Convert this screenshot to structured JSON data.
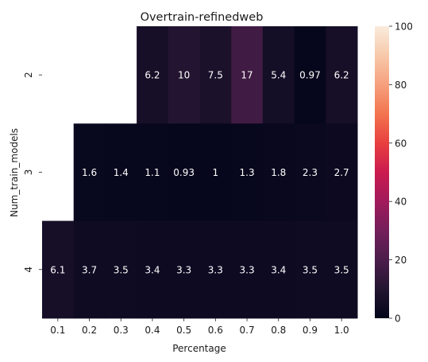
{
  "chart_data": {
    "type": "heatmap",
    "title": "Overtrain-refinedweb",
    "xlabel": "Percentage",
    "ylabel": "Num_train_models",
    "x_categories": [
      "0.1",
      "0.2",
      "0.3",
      "0.4",
      "0.5",
      "0.6",
      "0.7",
      "0.8",
      "0.9",
      "1.0"
    ],
    "y_categories": [
      "2",
      "3",
      "4"
    ],
    "values": [
      [
        null,
        null,
        null,
        6.2,
        10,
        7.5,
        17,
        5.4,
        0.97,
        6.2
      ],
      [
        null,
        1.6,
        1.4,
        1.1,
        0.93,
        1,
        1.3,
        1.8,
        2.3,
        2.7
      ],
      [
        6.1,
        3.7,
        3.5,
        3.4,
        3.3,
        3.3,
        3.3,
        3.4,
        3.5,
        3.5
      ]
    ],
    "labels": [
      [
        null,
        null,
        null,
        "6.2",
        "10",
        "7.5",
        "17",
        "5.4",
        "0.97",
        "6.2"
      ],
      [
        null,
        "1.6",
        "1.4",
        "1.1",
        "0.93",
        "1",
        "1.3",
        "1.8",
        "2.3",
        "2.7"
      ],
      [
        "6.1",
        "3.7",
        "3.5",
        "3.4",
        "3.3",
        "3.3",
        "3.3",
        "3.4",
        "3.5",
        "3.5"
      ]
    ],
    "colorbar": {
      "min": 0,
      "max": 100,
      "ticks": [
        "0",
        "20",
        "40",
        "60",
        "80",
        "100"
      ],
      "colormap": "rocket"
    },
    "annotation_color": "#ffffff",
    "grid": false
  }
}
